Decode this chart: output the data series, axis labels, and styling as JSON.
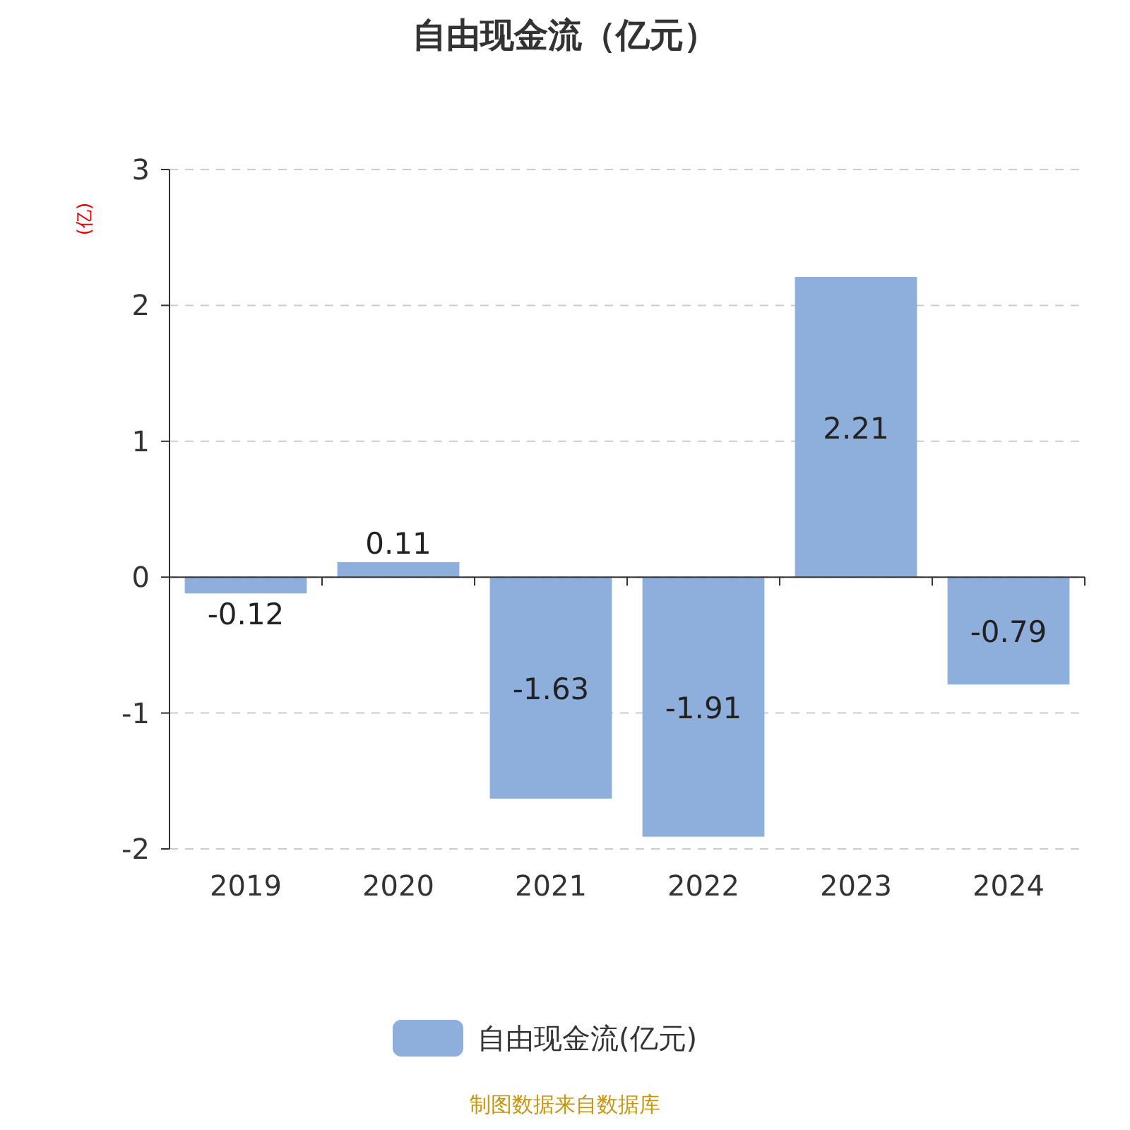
{
  "chart_data": {
    "type": "bar",
    "title": "自由现金流（亿元）",
    "ylabel": "(亿)",
    "categories": [
      "2019",
      "2020",
      "2021",
      "2022",
      "2023",
      "2024"
    ],
    "series": [
      {
        "name": "自由现金流(亿元)",
        "color": "#8eaedb",
        "values": [
          -0.12,
          0.11,
          -1.63,
          -1.91,
          2.21,
          -0.79
        ]
      }
    ],
    "ylim": [
      -2,
      3
    ],
    "yticks": [
      -2,
      -1,
      0,
      1,
      2,
      3
    ],
    "grid": "y",
    "legend": "bottom",
    "data_labels": true,
    "annotations": [
      "制图数据来自数据库"
    ]
  }
}
